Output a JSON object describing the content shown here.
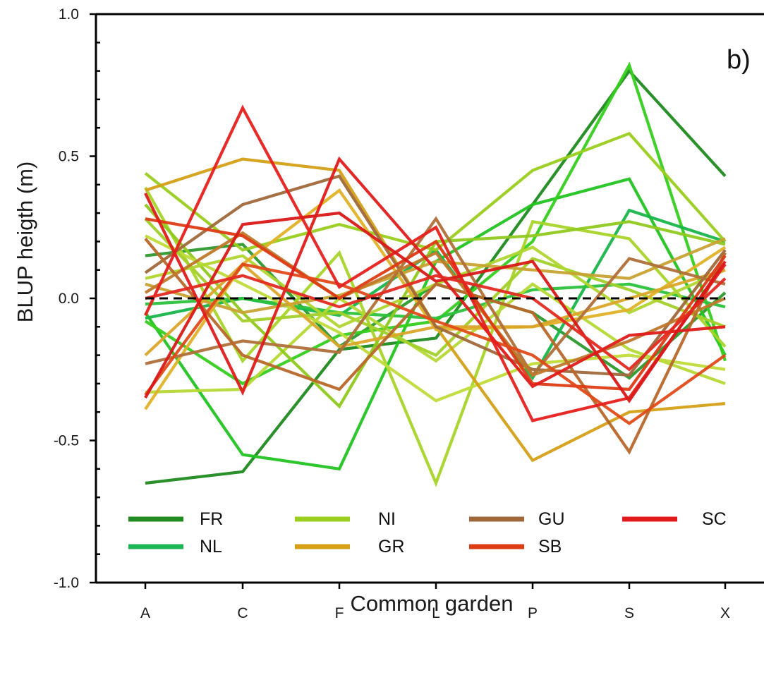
{
  "chart_data": {
    "type": "line",
    "panel_label": "b)",
    "xlabel": "Common garden",
    "ylabel": "BLUP heigth (m)",
    "categories": [
      "A",
      "C",
      "F",
      "L",
      "P",
      "S",
      "X"
    ],
    "ylim": [
      -1.0,
      1.0
    ],
    "yticks": [
      "1.0",
      "0.5",
      "0.0",
      "-0.5",
      "-1.0"
    ],
    "reference_line": 0,
    "legend": [
      {
        "name": "FR",
        "color": "#1f8a1f"
      },
      {
        "name": "NI",
        "color": "#9acd1e"
      },
      {
        "name": "GU",
        "color": "#a0683a"
      },
      {
        "name": "SC",
        "color": "#e01b1b"
      },
      {
        "name": "NL",
        "color": "#1db556"
      },
      {
        "name": "GR",
        "color": "#d4a017"
      },
      {
        "name": "SB",
        "color": "#dd3b14"
      }
    ],
    "series": [
      {
        "group": "FR",
        "color": "#1f8a1f",
        "values": [
          -0.65,
          -0.61,
          -0.18,
          -0.14,
          0.33,
          0.8,
          0.43
        ]
      },
      {
        "group": "FR",
        "color": "#2d9a2d",
        "values": [
          0.15,
          0.19,
          -0.17,
          0.05,
          -0.05,
          -0.28,
          0.02
        ]
      },
      {
        "group": "NL",
        "color": "#22c422",
        "values": [
          -0.05,
          -0.55,
          -0.6,
          0.13,
          0.33,
          0.42,
          -0.2
        ]
      },
      {
        "group": "NL",
        "color": "#35cf1f",
        "values": [
          -0.08,
          -0.3,
          -0.13,
          -0.08,
          0.2,
          0.82,
          -0.22
        ]
      },
      {
        "group": "NL",
        "color": "#18b54a",
        "values": [
          -0.07,
          0.0,
          -0.06,
          0.17,
          -0.28,
          0.31,
          0.2
        ]
      },
      {
        "group": "NL",
        "color": "#2bc23c",
        "values": [
          -0.02,
          0.0,
          -0.05,
          -0.07,
          0.03,
          0.05,
          -0.03
        ]
      },
      {
        "group": "NI",
        "color": "#9acd1e",
        "values": [
          0.44,
          0.17,
          0.26,
          0.17,
          0.45,
          0.58,
          0.2
        ]
      },
      {
        "group": "NI",
        "color": "#a8d428",
        "values": [
          0.39,
          -0.22,
          0.16,
          -0.65,
          0.27,
          0.21,
          -0.17
        ]
      },
      {
        "group": "NI",
        "color": "#b5d935",
        "values": [
          -0.33,
          -0.32,
          0.0,
          -0.22,
          0.05,
          -0.18,
          -0.3
        ]
      },
      {
        "group": "NI",
        "color": "#8fc91f",
        "values": [
          0.33,
          -0.05,
          -0.38,
          0.2,
          0.22,
          0.27,
          0.19
        ]
      },
      {
        "group": "NI",
        "color": "#c0dc3a",
        "values": [
          0.22,
          0.05,
          -0.12,
          -0.36,
          -0.23,
          -0.2,
          -0.25
        ]
      },
      {
        "group": "NI",
        "color": "#a2d02a",
        "values": [
          0.28,
          -0.08,
          -0.05,
          -0.2,
          0.14,
          0.03,
          -0.1
        ]
      },
      {
        "group": "NI",
        "color": "#b0d630",
        "values": [
          0.07,
          0.15,
          -0.1,
          0.05,
          0.18,
          -0.05,
          0.1
        ]
      },
      {
        "group": "GR",
        "color": "#d4a017",
        "values": [
          0.38,
          0.49,
          0.45,
          -0.1,
          -0.57,
          -0.4,
          -0.37
        ]
      },
      {
        "group": "GR",
        "color": "#e0b228",
        "values": [
          -0.39,
          0.12,
          0.38,
          -0.11,
          -0.1,
          -0.04,
          0.18
        ]
      },
      {
        "group": "GR",
        "color": "#c9a233",
        "values": [
          0.05,
          -0.05,
          0.01,
          0.13,
          0.1,
          0.07,
          0.21
        ]
      },
      {
        "group": "GR",
        "color": "#dba52a",
        "values": [
          -0.2,
          0.12,
          -0.17,
          -0.1,
          -0.1,
          0.0,
          0.1
        ]
      },
      {
        "group": "GU",
        "color": "#a0683a",
        "values": [
          0.09,
          0.33,
          0.43,
          -0.1,
          -0.25,
          -0.27,
          0.17
        ]
      },
      {
        "group": "GU",
        "color": "#b0703a",
        "values": [
          -0.23,
          -0.15,
          -0.19,
          0.28,
          -0.27,
          0.14,
          0.05
        ]
      },
      {
        "group": "GU",
        "color": "#b9682a",
        "values": [
          0.21,
          -0.2,
          -0.32,
          0.05,
          -0.05,
          -0.54,
          0.16
        ]
      },
      {
        "group": "GU",
        "color": "#c0782a",
        "values": [
          0.02,
          0.23,
          0.0,
          0.16,
          -0.27,
          -0.15,
          0.0
        ]
      },
      {
        "group": "SB",
        "color": "#dd3b14",
        "values": [
          0.28,
          0.22,
          0.0,
          0.2,
          -0.3,
          -0.32,
          0.15
        ]
      },
      {
        "group": "SB",
        "color": "#e04a1a",
        "values": [
          -0.34,
          0.12,
          0.05,
          -0.08,
          -0.2,
          -0.44,
          -0.2
        ]
      },
      {
        "group": "SC",
        "color": "#e01b1b",
        "values": [
          0.37,
          -0.33,
          0.49,
          0.1,
          -0.31,
          -0.13,
          -0.1
        ]
      },
      {
        "group": "SC",
        "color": "#e6201e",
        "values": [
          -0.06,
          0.67,
          0.04,
          0.25,
          -0.43,
          -0.35,
          0.12
        ]
      },
      {
        "group": "SC",
        "color": "#d91818",
        "values": [
          -0.35,
          0.26,
          0.3,
          0.06,
          0.13,
          -0.36,
          0.13
        ]
      },
      {
        "group": "SC",
        "color": "#e32a22",
        "values": [
          0.0,
          0.08,
          -0.03,
          0.08,
          0.0,
          -0.25,
          0.07
        ]
      }
    ]
  }
}
